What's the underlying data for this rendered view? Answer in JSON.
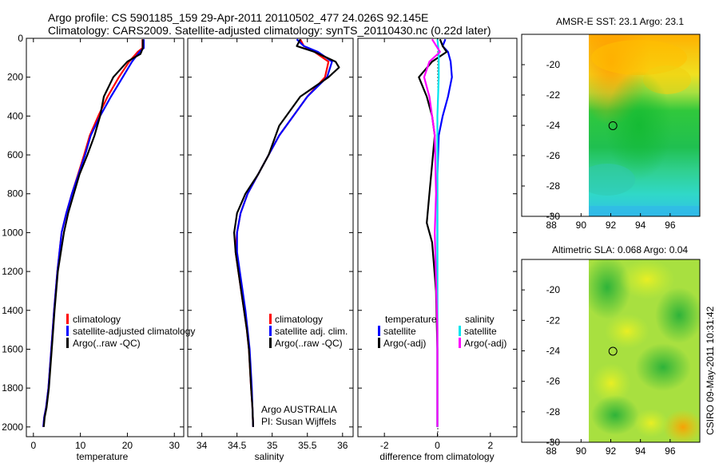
{
  "header": {
    "title_line1": "Argo profile: CS 5901185_159 29-Apr-2011 20110502_477 24.026S 92.145E",
    "title_line2": "Climatology: CARS2009. Satellite-adjusted climatology: synTS_20110430.nc (0.22d later)"
  },
  "footer": {
    "credit": "CSIRO 09-May-2011 10:31:42"
  },
  "colors": {
    "climatology": "#ff0000",
    "satellite": "#0000ff",
    "argo": "#000000",
    "salinity_satellite": "#00e5ee",
    "salinity_argo": "#ff00ff"
  },
  "chart_data": [
    {
      "id": "temperature",
      "type": "line",
      "xlabel": "temperature",
      "ylabel": "",
      "xlim": [
        -1.5,
        32
      ],
      "ylim": [
        2050,
        0
      ],
      "y_inverted": true,
      "xticks": [
        0,
        10,
        20,
        30
      ],
      "yticks": [
        0,
        200,
        400,
        600,
        800,
        1000,
        1200,
        1400,
        1600,
        1800,
        2000
      ],
      "legend": [
        "climatology",
        "satellite-adjusted climatology",
        "Argo(..raw -QC)"
      ],
      "legend_position": "lower-right",
      "series": [
        {
          "name": "climatology",
          "color": "#ff0000",
          "x": [
            23.2,
            23.2,
            22.2,
            20.4,
            18.2,
            15.8,
            13.8,
            12.0,
            10.8,
            9.5,
            8.2,
            7.0,
            6.0,
            5.1,
            4.4,
            3.8,
            3.2,
            2.7,
            2.3,
            2.1
          ],
          "y": [
            5,
            50,
            70,
            120,
            200,
            300,
            400,
            500,
            600,
            700,
            800,
            900,
            1000,
            1200,
            1400,
            1600,
            1800,
            1900,
            1950,
            2000
          ]
        },
        {
          "name": "satellite-adjusted",
          "color": "#0000ff",
          "x": [
            23.5,
            23.5,
            22.6,
            21.0,
            19.0,
            16.5,
            14.2,
            12.2,
            11.0,
            9.6,
            8.2,
            7.0,
            6.0,
            5.1,
            4.4,
            3.8,
            3.2,
            2.7,
            2.3,
            2.1
          ],
          "y": [
            5,
            50,
            70,
            120,
            200,
            300,
            400,
            500,
            600,
            700,
            800,
            900,
            1000,
            1200,
            1400,
            1600,
            1800,
            1900,
            1950,
            2000
          ]
        },
        {
          "name": "Argo",
          "color": "#000000",
          "x": [
            23.3,
            23.3,
            22.8,
            20.0,
            17.0,
            15.0,
            14.2,
            13.0,
            11.5,
            9.8,
            8.6,
            7.4,
            6.5,
            5.2,
            4.5,
            3.9,
            3.3,
            2.8,
            2.4,
            2.2
          ],
          "y": [
            5,
            50,
            80,
            120,
            200,
            300,
            400,
            500,
            600,
            700,
            800,
            900,
            1000,
            1200,
            1400,
            1600,
            1800,
            1900,
            1950,
            2000
          ]
        }
      ]
    },
    {
      "id": "salinity",
      "type": "line",
      "xlabel": "salinity",
      "ylabel": "",
      "xlim": [
        33.8,
        36.15
      ],
      "ylim": [
        2050,
        0
      ],
      "y_inverted": true,
      "xticks": [
        34,
        34.5,
        35,
        35.5,
        36
      ],
      "legend": [
        "climatology",
        "satellite adj. clim.",
        "Argo(..raw -QC)"
      ],
      "legend_position": "lower-right",
      "annotations": [
        "Argo AUSTRALIA",
        "PI: Susan Wijffels"
      ],
      "series": [
        {
          "name": "climatology",
          "color": "#ff0000",
          "x": [
            35.4,
            35.45,
            35.6,
            35.8,
            35.75,
            35.5,
            35.3,
            35.1,
            34.95,
            34.8,
            34.65,
            34.55,
            34.5,
            34.48,
            34.52,
            34.56,
            34.6,
            34.64,
            34.67,
            34.7,
            34.72,
            34.73
          ],
          "y": [
            5,
            40,
            70,
            120,
            200,
            300,
            400,
            500,
            600,
            700,
            800,
            900,
            1000,
            1100,
            1200,
            1300,
            1400,
            1500,
            1600,
            1800,
            1900,
            2000
          ]
        },
        {
          "name": "satellite adj. clim.",
          "color": "#0000ff",
          "x": [
            35.35,
            35.45,
            35.65,
            35.85,
            35.78,
            35.5,
            35.3,
            35.1,
            34.95,
            34.8,
            34.65,
            34.55,
            34.5,
            34.5,
            34.54,
            34.58,
            34.62,
            34.65,
            34.68,
            34.71,
            34.72,
            34.73
          ],
          "y": [
            5,
            40,
            70,
            120,
            200,
            300,
            400,
            500,
            600,
            700,
            800,
            900,
            1000,
            1100,
            1200,
            1300,
            1400,
            1500,
            1600,
            1800,
            1900,
            2000
          ]
        },
        {
          "name": "Argo",
          "color": "#000000",
          "x": [
            35.4,
            35.35,
            35.6,
            35.9,
            35.95,
            35.8,
            35.4,
            35.1,
            34.95,
            34.8,
            34.62,
            34.5,
            34.46,
            34.48,
            34.52,
            34.56,
            34.6,
            34.64,
            34.67,
            34.7,
            34.72,
            34.73
          ],
          "y": [
            5,
            40,
            70,
            120,
            150,
            200,
            300,
            450,
            600,
            700,
            800,
            900,
            1000,
            1100,
            1200,
            1300,
            1400,
            1500,
            1600,
            1800,
            1900,
            2000
          ]
        }
      ]
    },
    {
      "id": "difference",
      "type": "line",
      "xlabel": "difference from climatology",
      "ylabel": "",
      "xlim": [
        -3,
        3
      ],
      "ylim": [
        2050,
        0
      ],
      "y_inverted": true,
      "xticks": [
        -2,
        0,
        2
      ],
      "legend": [
        "temperature",
        "satellite",
        "Argo(-adj)",
        "salinity",
        "satellite",
        "Argo(-adj)"
      ],
      "legend_position": "lower-center",
      "series": [
        {
          "name": "temperature satellite",
          "color": "#0000ff",
          "x": [
            0.3,
            0.2,
            0.4,
            0.5,
            0.55,
            0.4,
            0.2,
            0.05,
            0.0,
            0.0,
            0.0,
            0.0,
            0.0,
            0.0
          ],
          "y": [
            5,
            40,
            70,
            120,
            200,
            300,
            400,
            500,
            700,
            900,
            1200,
            1500,
            1800,
            2000
          ]
        },
        {
          "name": "temperature Argo(-adj)",
          "color": "#000000",
          "x": [
            0.1,
            0.2,
            0.35,
            -0.2,
            -0.7,
            -0.4,
            -0.2,
            -0.1,
            -0.3,
            -0.4,
            -0.2,
            -0.05,
            0.0,
            0.0
          ],
          "y": [
            5,
            40,
            70,
            120,
            200,
            300,
            400,
            500,
            800,
            950,
            1050,
            1300,
            1600,
            2000
          ]
        },
        {
          "name": "salinity satellite",
          "color": "#00e5ee",
          "x": [
            0.0,
            0.05,
            0.05,
            0.05,
            0.0,
            0.0,
            0.0,
            0.0,
            0.0,
            0.0
          ],
          "y": [
            5,
            70,
            120,
            200,
            400,
            700,
            1000,
            1400,
            1700,
            2000
          ]
        },
        {
          "name": "salinity Argo(-adj)",
          "color": "#ff00ff",
          "x": [
            -0.2,
            0.1,
            -0.3,
            -0.5,
            -0.3,
            -0.1,
            -0.05,
            -0.1,
            0.0,
            0.0
          ],
          "y": [
            5,
            70,
            120,
            200,
            300,
            500,
            800,
            1000,
            1500,
            2000
          ]
        }
      ]
    },
    {
      "id": "sst_map",
      "type": "heatmap",
      "title": "AMSR-E SST: 23.1 Argo: 23.1",
      "xlim": [
        86,
        98
      ],
      "ylim": [
        -30,
        -18
      ],
      "xticks": [
        88,
        90,
        92,
        94,
        96
      ],
      "yticks": [
        -20,
        -22,
        -24,
        -26,
        -28,
        -30
      ],
      "data_lon_range": [
        90,
        98
      ],
      "marker": {
        "lon": 92.145,
        "lat": -24.026
      },
      "colormap": "jet"
    },
    {
      "id": "sla_map",
      "type": "heatmap",
      "title": "Altimetric SLA: 0.068 Argo: 0.04",
      "xlim": [
        86,
        98
      ],
      "ylim": [
        -30,
        -18
      ],
      "xticks": [
        88,
        90,
        92,
        94,
        96
      ],
      "yticks": [
        -20,
        -22,
        -24,
        -26,
        -28,
        -30
      ],
      "data_lon_range": [
        90,
        98
      ],
      "marker": {
        "lon": 92.145,
        "lat": -24.026
      },
      "colormap": "jet"
    }
  ]
}
